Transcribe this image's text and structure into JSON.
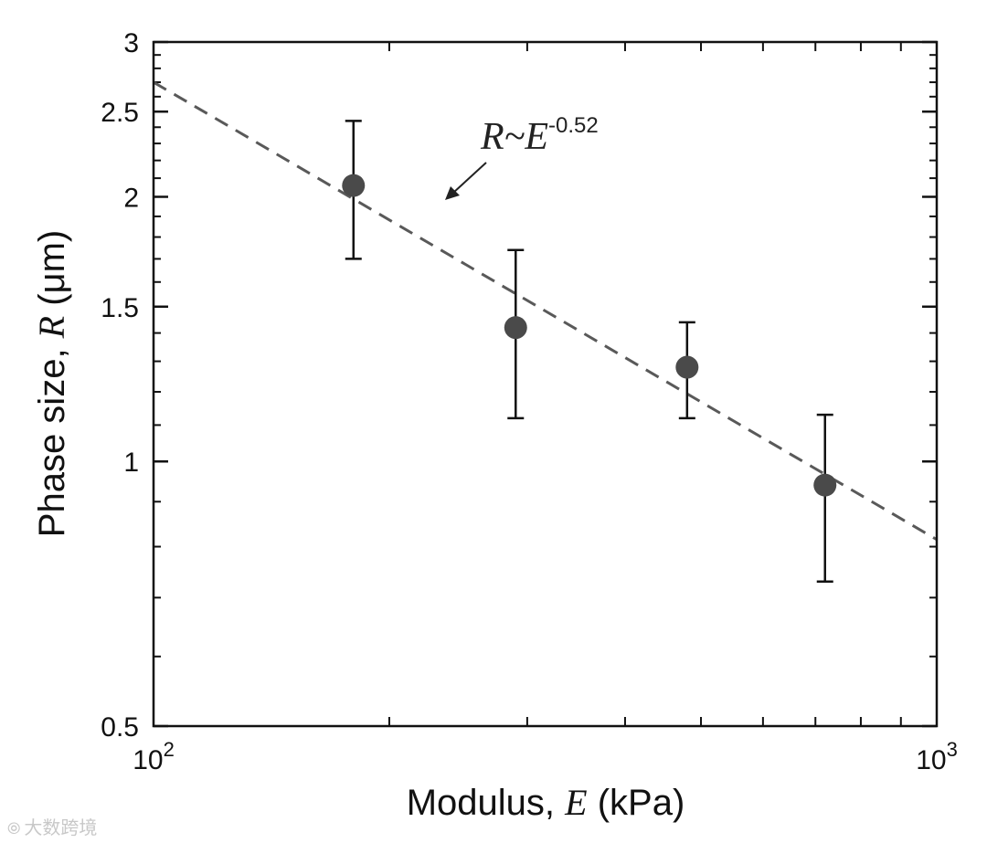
{
  "chart_data": {
    "type": "scatter",
    "xscale": "log",
    "yscale": "log",
    "xlim": [
      100,
      1000
    ],
    "ylim": [
      0.5,
      3
    ],
    "x_tick_labels": [
      {
        "value": 100,
        "base": "10",
        "exp": "2"
      },
      {
        "value": 1000,
        "base": "10",
        "exp": "3"
      }
    ],
    "y_tick_labels": [
      {
        "value": 0.5,
        "text": "0.5"
      },
      {
        "value": 1,
        "text": "1"
      },
      {
        "value": 1.5,
        "text": "1.5"
      },
      {
        "value": 2,
        "text": "2"
      },
      {
        "value": 2.5,
        "text": "2.5"
      },
      {
        "value": 3,
        "text": "3"
      }
    ],
    "xlabel": {
      "prefix": "Modulus, ",
      "var": "E",
      "suffix": " (kPa)"
    },
    "ylabel": {
      "prefix": "Phase size, ",
      "var": "R",
      "suffix": " (μm)"
    },
    "points": [
      {
        "x": 180,
        "y": 2.06,
        "err_low": 1.7,
        "err_high": 2.44
      },
      {
        "x": 290,
        "y": 1.42,
        "err_low": 1.12,
        "err_high": 1.74
      },
      {
        "x": 480,
        "y": 1.28,
        "err_low": 1.12,
        "err_high": 1.44
      },
      {
        "x": 720,
        "y": 0.94,
        "err_low": 0.73,
        "err_high": 1.13
      }
    ],
    "fit_line": {
      "exponent": -0.52,
      "x": [
        100,
        1000
      ],
      "y": [
        2.7,
        0.815
      ],
      "style": "dashed"
    },
    "annotation": {
      "base": "R~E",
      "exp": "-0.52"
    },
    "marker_color": "#4a4a4a",
    "fit_color": "#595959"
  },
  "watermark": {
    "logo": "⦾",
    "text": "大数跨境"
  }
}
